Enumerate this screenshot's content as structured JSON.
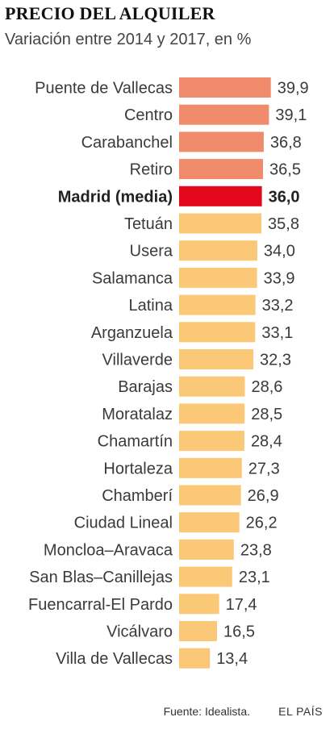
{
  "chart_data": {
    "type": "bar",
    "orientation": "horizontal",
    "title": "PRECIO DEL ALQUILER",
    "subtitle": "Variación entre 2014 y 2017, en %",
    "categories": [
      "Puente de Vallecas",
      "Centro",
      "Carabanchel",
      "Retiro",
      "Madrid (media)",
      "Tetuán",
      "Usera",
      "Salamanca",
      "Latina",
      "Arganzuela",
      "Villaverde",
      "Barajas",
      "Moratalaz",
      "Chamartín",
      "Hortaleza",
      "Chamberí",
      "Ciudad Lineal",
      "Moncloa–Aravaca",
      "San Blas–Canillejas",
      "Fuencarral-El Pardo",
      "Vicálvaro",
      "Villa de Vallecas"
    ],
    "values": [
      39.9,
      39.1,
      36.8,
      36.5,
      36.0,
      35.8,
      34.0,
      33.9,
      33.2,
      33.1,
      32.3,
      28.6,
      28.5,
      28.4,
      27.3,
      26.9,
      26.2,
      23.8,
      23.1,
      17.4,
      16.5,
      13.4
    ],
    "value_labels": [
      "39,9",
      "39,1",
      "36,8",
      "36,5",
      "36,0",
      "35,8",
      "34,0",
      "33,9",
      "33,2",
      "33,1",
      "32,3",
      "28,6",
      "28,5",
      "28,4",
      "27,3",
      "26,9",
      "26,2",
      "23,8",
      "23,1",
      "17,4",
      "16,5",
      "13,4"
    ],
    "highlight": "Madrid (media)",
    "xlim": [
      0,
      40
    ],
    "colors": {
      "above_average": "#f08c6c",
      "average": "#e2071a",
      "below_average": "#fbc877"
    }
  },
  "footer": {
    "source": "Fuente: Idealista.",
    "brand": "EL PAÍS"
  }
}
